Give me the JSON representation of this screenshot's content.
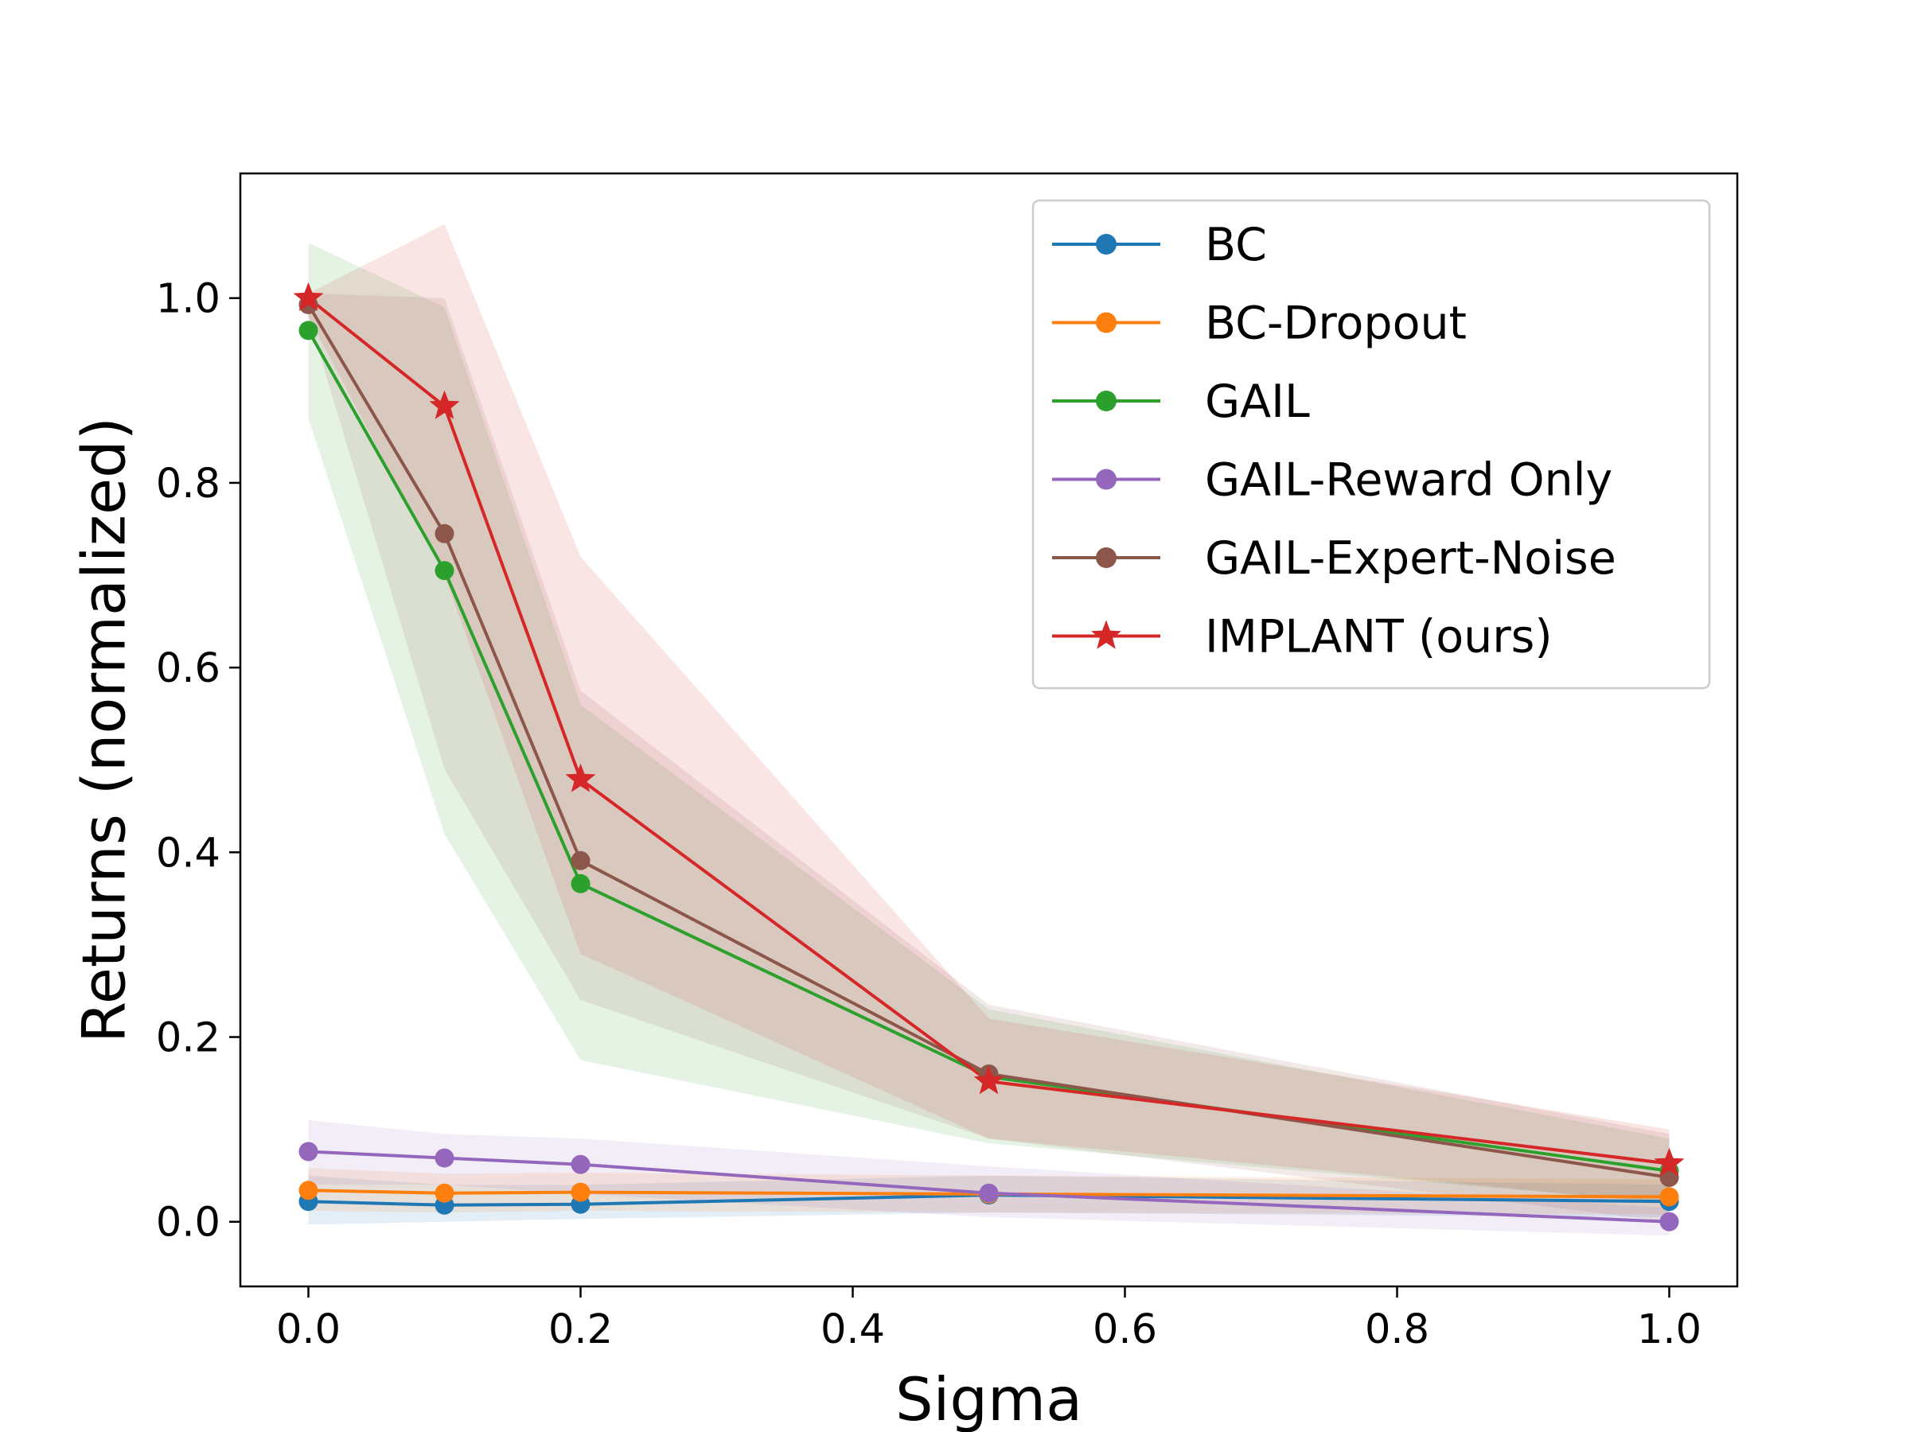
{
  "chart_data": {
    "type": "line",
    "xlabel": "Sigma",
    "ylabel": "Returns (normalized)",
    "xlim": [
      -0.05,
      1.05
    ],
    "ylim": [
      -0.07,
      1.135
    ],
    "x_ticks": [
      "0.0",
      "0.2",
      "0.4",
      "0.6",
      "0.8",
      "1.0"
    ],
    "y_ticks": [
      "0.0",
      "0.2",
      "0.4",
      "0.6",
      "0.8",
      "1.0"
    ],
    "grid": false,
    "legend_position": "top-right",
    "x": [
      0.0,
      0.1,
      0.2,
      0.5,
      1.0
    ],
    "series": [
      {
        "name": "BC",
        "color": "#1f77b4",
        "marker": "circle",
        "values": [
          0.022,
          0.018,
          0.019,
          0.029,
          0.022
        ],
        "lower": [
          -0.003,
          0.0,
          0.003,
          0.01,
          0.005
        ],
        "upper": [
          0.05,
          0.04,
          0.04,
          0.05,
          0.04
        ]
      },
      {
        "name": "BC-Dropout",
        "color": "#ff7f0e",
        "marker": "circle",
        "values": [
          0.034,
          0.031,
          0.032,
          0.03,
          0.027
        ],
        "lower": [
          0.012,
          0.01,
          0.012,
          0.01,
          0.008
        ],
        "upper": [
          0.058,
          0.052,
          0.053,
          0.05,
          0.046
        ]
      },
      {
        "name": "GAIL",
        "color": "#2ca02c",
        "marker": "circle",
        "values": [
          0.965,
          0.705,
          0.366,
          0.157,
          0.055
        ],
        "lower": [
          0.87,
          0.42,
          0.175,
          0.085,
          0.02
        ],
        "upper": [
          1.06,
          0.99,
          0.56,
          0.23,
          0.09
        ]
      },
      {
        "name": "GAIL-Reward Only",
        "color": "#9467bd",
        "marker": "circle",
        "values": [
          0.076,
          0.069,
          0.062,
          0.031,
          0.0
        ],
        "lower": [
          0.04,
          0.04,
          0.03,
          0.005,
          -0.015
        ],
        "upper": [
          0.11,
          0.095,
          0.09,
          0.06,
          0.015
        ]
      },
      {
        "name": "GAIL-Expert-Noise",
        "color": "#8c564b",
        "marker": "circle",
        "values": [
          0.993,
          0.745,
          0.391,
          0.16,
          0.048
        ],
        "lower": [
          0.98,
          0.49,
          0.24,
          0.09,
          0.0
        ],
        "upper": [
          1.005,
          1.0,
          0.575,
          0.235,
          0.095
        ]
      },
      {
        "name": "IMPLANT (ours)",
        "color": "#d62728",
        "marker": "star",
        "values": [
          1.0,
          0.883,
          0.479,
          0.152,
          0.063
        ],
        "lower": [
          0.98,
          0.7,
          0.29,
          0.09,
          0.02
        ],
        "upper": [
          1.005,
          1.08,
          0.72,
          0.22,
          0.1
        ]
      }
    ]
  }
}
